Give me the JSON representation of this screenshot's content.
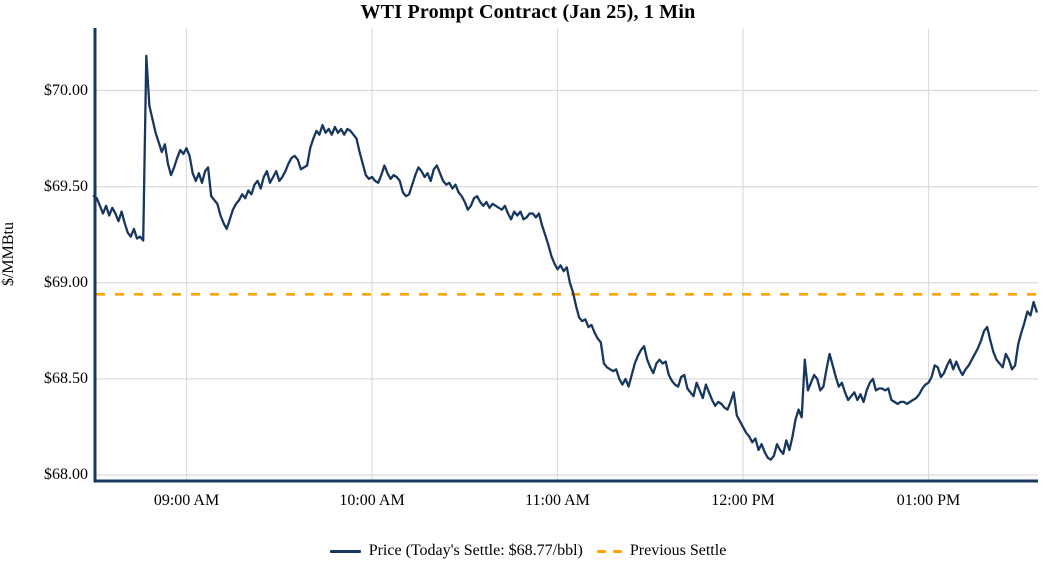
{
  "page": {
    "background": "#ffffff",
    "text_color": "#000000",
    "grid_color": "#dcdcdc"
  },
  "header": {
    "title": "WTI Prompt Contract (Jan 25), 1 Min"
  },
  "legend": {
    "price_label": "Price (Today's Settle: $68.77/bbl)",
    "previous_settle_label": "Previous Settle"
  },
  "chart_data": {
    "type": "line",
    "title": "WTI Prompt Contract (Jan 25), 1 Min",
    "xlabel": "",
    "ylabel": "$/MMBtu",
    "grid": true,
    "legend_position": "bottom-center",
    "x_tick_labels": [
      "09:00 AM",
      "10:00 AM",
      "11:00 AM",
      "12:00 PM",
      "01:00 PM"
    ],
    "y_tick_labels": [
      "$70.00",
      "$69.50",
      "$69.00",
      "$68.50",
      "$68.00"
    ],
    "y_tick_values": [
      70.0,
      69.5,
      69.0,
      68.5,
      68.0
    ],
    "ylim": [
      67.97,
      70.33
    ],
    "x_start": "08:30 AM",
    "x_end": "01:35 PM",
    "x_step_minutes": 1,
    "today_settle": 68.77,
    "previous_settle": 68.94,
    "series": [
      {
        "name": "Price (Today's Settle: $68.77/bbl)",
        "color": "#17375E",
        "style": "solid",
        "values": [
          69.45,
          69.44,
          69.4,
          69.36,
          69.4,
          69.35,
          69.39,
          69.36,
          69.32,
          69.37,
          69.31,
          69.26,
          69.24,
          69.28,
          69.23,
          69.24,
          69.22,
          70.18,
          69.92,
          69.85,
          69.78,
          69.73,
          69.68,
          69.72,
          69.62,
          69.56,
          69.6,
          69.65,
          69.69,
          69.67,
          69.7,
          69.66,
          69.57,
          69.53,
          69.57,
          69.52,
          69.58,
          69.6,
          69.45,
          69.43,
          69.41,
          69.35,
          69.31,
          69.28,
          69.33,
          69.38,
          69.41,
          69.43,
          69.46,
          69.44,
          69.48,
          69.46,
          69.51,
          69.53,
          69.49,
          69.55,
          69.58,
          69.52,
          69.55,
          69.58,
          69.53,
          69.55,
          69.58,
          69.62,
          69.65,
          69.66,
          69.64,
          69.59,
          69.6,
          69.61,
          69.7,
          69.75,
          69.79,
          69.77,
          69.82,
          69.78,
          69.8,
          69.77,
          69.81,
          69.78,
          69.8,
          69.77,
          69.8,
          69.79,
          69.77,
          69.75,
          69.68,
          69.62,
          69.56,
          69.54,
          69.55,
          69.53,
          69.52,
          69.56,
          69.61,
          69.57,
          69.54,
          69.56,
          69.55,
          69.53,
          69.47,
          69.45,
          69.46,
          69.51,
          69.56,
          69.6,
          69.58,
          69.55,
          69.57,
          69.53,
          69.59,
          69.61,
          69.57,
          69.53,
          69.51,
          69.52,
          69.49,
          69.51,
          69.47,
          69.45,
          69.42,
          69.38,
          69.4,
          69.44,
          69.45,
          69.42,
          69.4,
          69.42,
          69.39,
          69.41,
          69.4,
          69.39,
          69.38,
          69.4,
          69.36,
          69.33,
          69.37,
          69.35,
          69.37,
          69.33,
          69.34,
          69.36,
          69.36,
          69.34,
          69.36,
          69.3,
          69.25,
          69.2,
          69.14,
          69.1,
          69.07,
          69.09,
          69.06,
          69.08,
          69.0,
          68.95,
          68.88,
          68.82,
          68.8,
          68.81,
          68.77,
          68.78,
          68.74,
          68.71,
          68.69,
          68.58,
          68.56,
          68.55,
          68.54,
          68.55,
          68.5,
          68.47,
          68.5,
          68.46,
          68.52,
          68.58,
          68.62,
          68.65,
          68.67,
          68.6,
          68.56,
          68.53,
          68.58,
          68.6,
          68.58,
          68.59,
          68.52,
          68.49,
          68.47,
          68.46,
          68.51,
          68.52,
          68.45,
          68.43,
          68.41,
          68.48,
          68.44,
          68.4,
          68.47,
          68.43,
          68.39,
          68.36,
          68.38,
          68.37,
          68.35,
          68.34,
          68.38,
          68.43,
          68.31,
          68.28,
          68.25,
          68.22,
          68.2,
          68.17,
          68.19,
          68.13,
          68.16,
          68.12,
          68.09,
          68.08,
          68.1,
          68.16,
          68.13,
          68.11,
          68.18,
          68.13,
          68.2,
          68.29,
          68.34,
          68.3,
          68.6,
          68.44,
          68.48,
          68.52,
          68.5,
          68.44,
          68.46,
          68.55,
          68.63,
          68.57,
          68.51,
          68.46,
          68.48,
          68.43,
          68.39,
          68.41,
          68.43,
          68.39,
          68.42,
          68.38,
          68.44,
          68.48,
          68.5,
          68.44,
          68.45,
          68.45,
          68.44,
          68.45,
          68.39,
          68.38,
          68.37,
          68.38,
          68.38,
          68.37,
          68.38,
          68.39,
          68.4,
          68.42,
          68.45,
          68.47,
          68.48,
          68.51,
          68.57,
          68.56,
          68.51,
          68.53,
          68.57,
          68.6,
          68.55,
          68.59,
          68.55,
          68.52,
          68.55,
          68.57,
          68.6,
          68.63,
          68.66,
          68.7,
          68.75,
          68.77,
          68.7,
          68.64,
          68.6,
          68.58,
          68.56,
          68.63,
          68.6,
          68.55,
          68.57,
          68.68,
          68.74,
          68.79,
          68.85,
          68.83,
          68.9,
          68.85
        ]
      },
      {
        "name": "Previous Settle",
        "color": "#FFA500",
        "style": "dashed",
        "value": 68.94
      }
    ]
  }
}
